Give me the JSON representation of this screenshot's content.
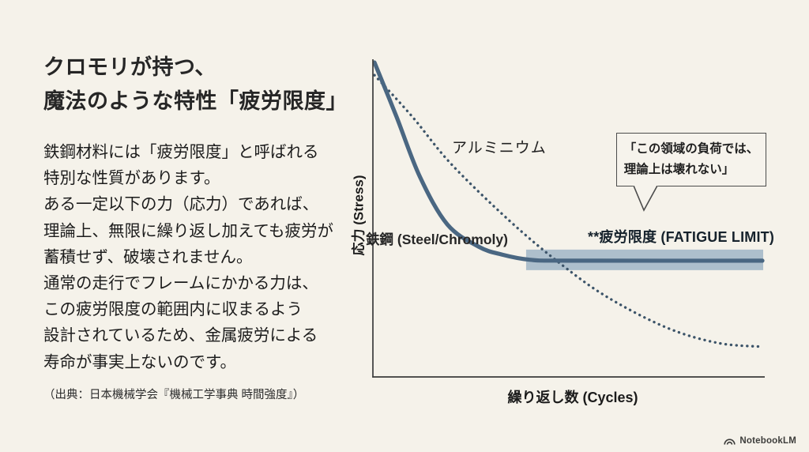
{
  "page": {
    "background": "#f5f2ea"
  },
  "left_panel": {
    "title": "クロモリが持つ、\n魔法のような特性「疲労限度」",
    "body_lines": [
      "鉄鋼材料には「疲労限度」と呼ばれる",
      "特別な性質があります。",
      "ある一定以下の力（応力）であれば、",
      "理論上、無限に繰り返し加えても疲労が",
      "蓄積せず、破壊されません。",
      "通常の走行でフレームにかかる力は、",
      "この疲労限度の範囲内に収まるよう",
      "設計されているため、金属疲労による",
      "寿命が事実上ないのです。"
    ],
    "citation": "（出典：日本機械学会『機械工学事典 時間強度』）"
  },
  "chart_data": {
    "type": "line",
    "title": "",
    "xlabel": "繰り返し数 (Cycles)",
    "ylabel": "応力 (Stress)",
    "grid": false,
    "ticks": false,
    "xlim": [
      0,
      1
    ],
    "ylim": [
      0,
      1
    ],
    "series": [
      {
        "name": "アルミニウム",
        "style": "dotted",
        "x": [
          0.004,
          0.1,
          0.2,
          0.35,
          0.48,
          0.6,
          0.75,
          0.88,
          0.994
        ],
        "y": [
          0.95,
          0.82,
          0.67,
          0.49,
          0.355,
          0.25,
          0.155,
          0.107,
          0.095
        ]
      },
      {
        "name": "鉄鋼\n(Steel/Chromoly)",
        "style": "solid",
        "x": [
          0.004,
          0.06,
          0.12,
          0.19,
          0.27,
          0.33,
          0.4,
          0.5,
          0.994
        ],
        "y": [
          0.99,
          0.82,
          0.63,
          0.48,
          0.41,
          0.385,
          0.369,
          0.366,
          0.366
        ]
      }
    ],
    "fatigue_limit": {
      "label": "**疲労限度 (FATIGUE LIMIT)",
      "y": 0.366,
      "band_x0": 0.391,
      "band_x1": 0.996
    },
    "annotation_callout": "「この領域の負荷では、\n理論上は壊れない」",
    "colors": {
      "steel": "#4a6782",
      "aluminum": "#3c5469",
      "band": "#a9bcca",
      "axis": "#3b3b3b"
    }
  },
  "footer": {
    "brand": "NotebookLM"
  }
}
